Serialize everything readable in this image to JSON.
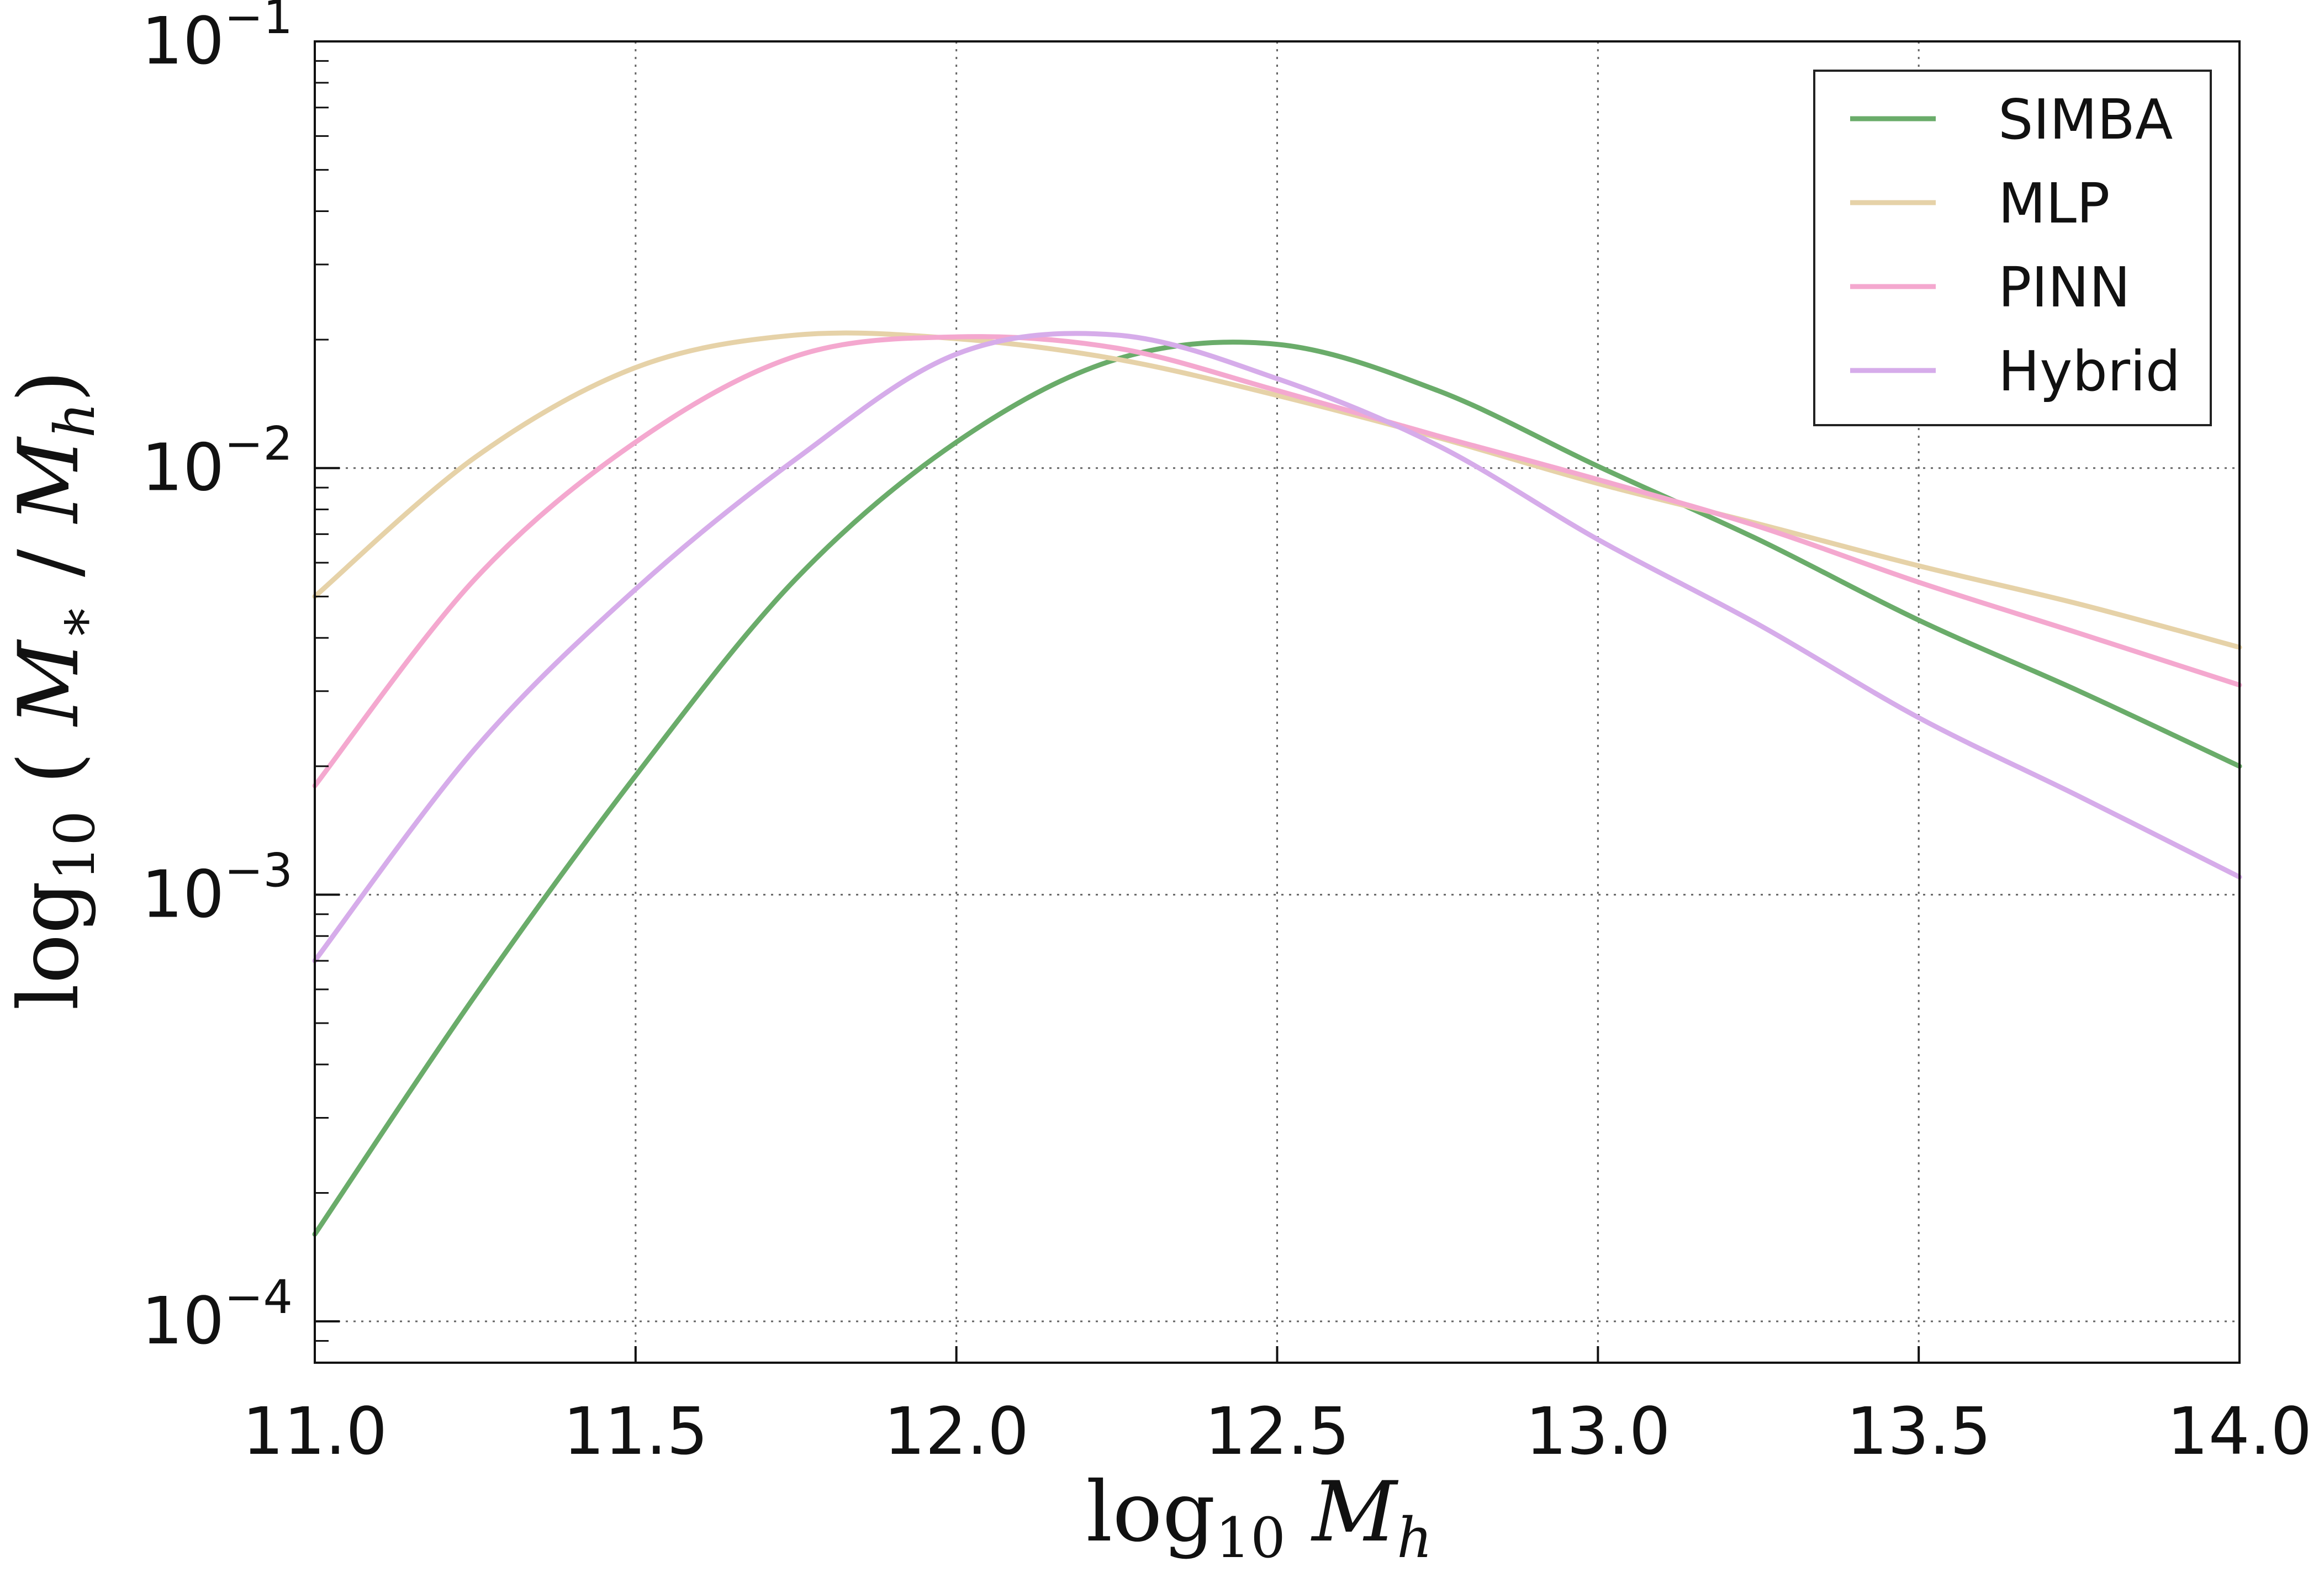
{
  "chart_data": {
    "type": "line",
    "xlabel": "log10 Mh",
    "ylabel": "log10 ( M* / Mh )",
    "xlim": [
      11.0,
      14.0
    ],
    "ylim": [
      8e-05,
      0.1
    ],
    "yscale": "log",
    "grid": true,
    "legend_position": "top-right",
    "x_ticks": [
      "11.0",
      "11.5",
      "12.0",
      "12.5",
      "13.0",
      "13.5",
      "14.0"
    ],
    "y_ticks": [
      {
        "value": 0.1,
        "base": "10",
        "exp": "−1"
      },
      {
        "value": 0.01,
        "base": "10",
        "exp": "−2"
      },
      {
        "value": 0.001,
        "base": "10",
        "exp": "−3"
      },
      {
        "value": 0.0001,
        "base": "10",
        "exp": "−4"
      }
    ],
    "x": [
      11.0,
      11.25,
      11.5,
      11.75,
      12.0,
      12.25,
      12.5,
      12.75,
      13.0,
      13.25,
      13.5,
      13.75,
      14.0
    ],
    "series": [
      {
        "name": "SIMBA",
        "color": "#6aac6a",
        "values": [
          0.00016,
          0.00058,
          0.0019,
          0.0055,
          0.0115,
          0.018,
          0.0195,
          0.0152,
          0.0101,
          0.0068,
          0.0044,
          0.003,
          0.002
        ]
      },
      {
        "name": "MLP",
        "color": "#e6d2a8",
        "values": [
          0.005,
          0.0106,
          0.0172,
          0.0205,
          0.0201,
          0.018,
          0.0148,
          0.0118,
          0.0092,
          0.0074,
          0.0059,
          0.0048,
          0.0038
        ]
      },
      {
        "name": "PINN",
        "color": "#f4a8cf",
        "values": [
          0.0018,
          0.0055,
          0.0115,
          0.0183,
          0.0203,
          0.0191,
          0.0152,
          0.0119,
          0.0094,
          0.0073,
          0.0054,
          0.0041,
          0.0031
        ]
      },
      {
        "name": "Hybrid",
        "color": "#d6acea",
        "values": [
          0.0007,
          0.0022,
          0.0052,
          0.0105,
          0.0185,
          0.0205,
          0.0162,
          0.0113,
          0.0068,
          0.0043,
          0.0026,
          0.0017,
          0.0011
        ]
      }
    ]
  }
}
